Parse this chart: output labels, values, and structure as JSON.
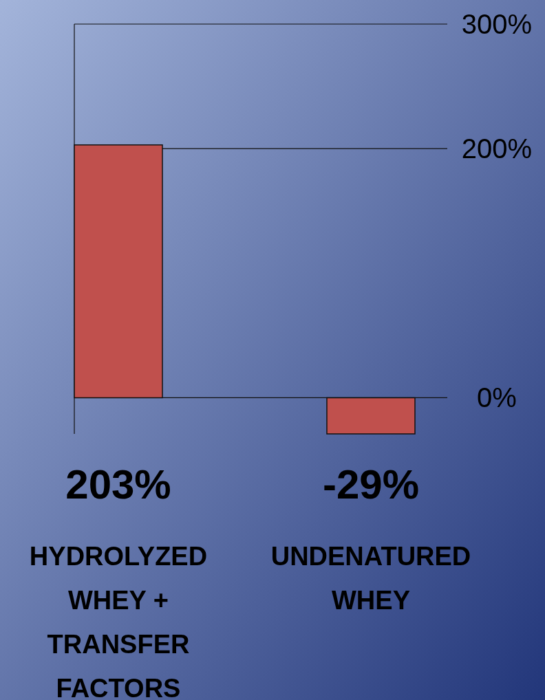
{
  "chart_data": {
    "type": "bar",
    "categories": [
      "HYDROLYZED WHEY + TRANSFER FACTORS",
      "UNDENATURED WHEY"
    ],
    "values": [
      203,
      -29
    ],
    "color": "#c0504d",
    "value_labels": [
      "203%",
      "-29%"
    ],
    "ylim": [
      -29,
      300
    ],
    "yticks": [
      {
        "value": 0,
        "label": "0%"
      },
      {
        "value": 200,
        "label": "200%"
      },
      {
        "value": 300,
        "label": "300%"
      }
    ],
    "grid": "y"
  }
}
